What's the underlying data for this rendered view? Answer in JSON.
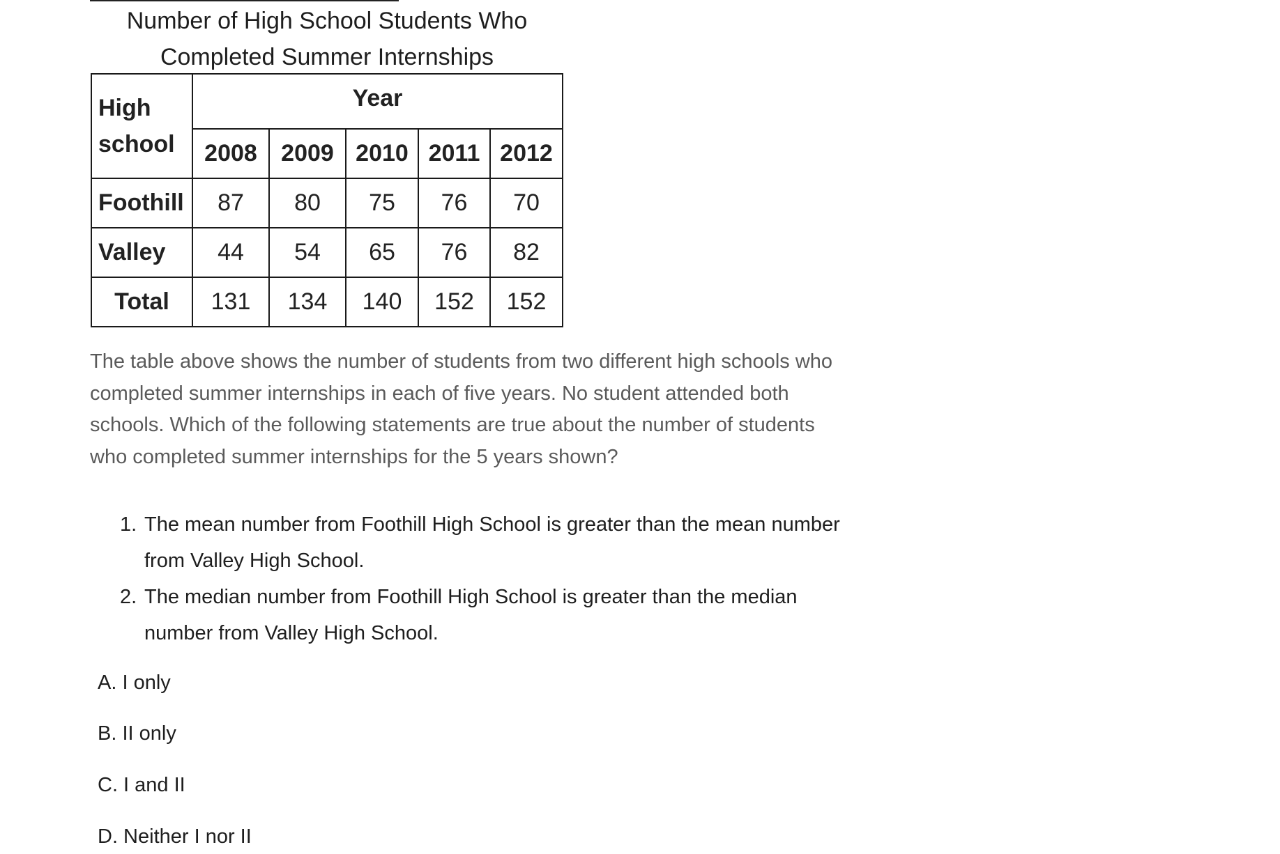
{
  "table": {
    "caption_line1": "Number of High School Students Who",
    "caption_line2": "Completed Summer Internships",
    "school_header": "High school",
    "year_header": "Year",
    "years": [
      "2008",
      "2009",
      "2010",
      "2011",
      "2012"
    ],
    "rows": [
      {
        "label": "Foothill",
        "values": [
          "87",
          "80",
          "75",
          "76",
          "70"
        ]
      },
      {
        "label": "Valley",
        "values": [
          "44",
          "54",
          "65",
          "76",
          "82"
        ]
      },
      {
        "label": "Total",
        "values": [
          "131",
          "134",
          "140",
          "152",
          "152"
        ]
      }
    ]
  },
  "question": {
    "text": "The table above shows the number of students from two different high schools who completed summer internships in each of five years. No student attended both schools. Which of the following statements are true about the number of students who completed summer internships for the 5 years shown?",
    "statements": [
      {
        "number": "1.",
        "text": "The mean number from Foothill High School is greater than the mean number from Valley High School."
      },
      {
        "number": "2.",
        "text": "The median number from Foothill High School is greater than the median number from Valley High School."
      }
    ]
  },
  "choices": [
    {
      "text": "A. I only"
    },
    {
      "text": "B. II only"
    },
    {
      "text": "C. I and II"
    },
    {
      "text": "D. Neither I nor II"
    }
  ]
}
